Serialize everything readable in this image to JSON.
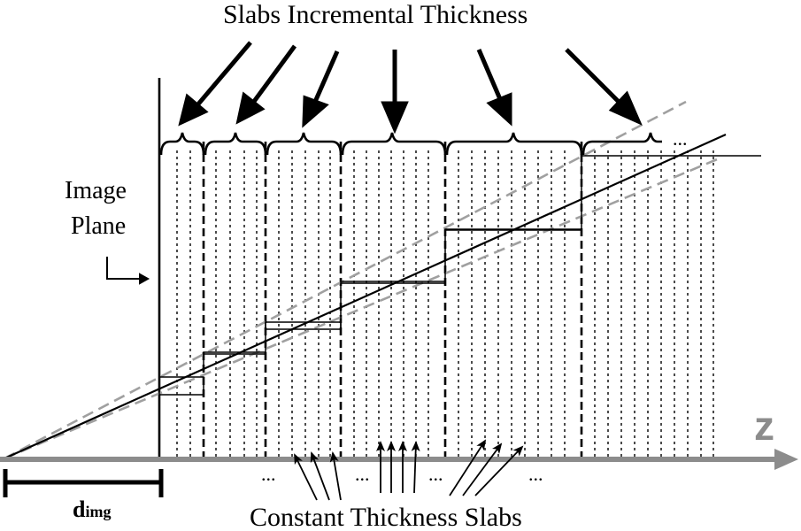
{
  "labels": {
    "top_title": "Slabs Incremental Thickness",
    "image_plane_line1": "Image",
    "image_plane_line2": "Plane",
    "bottom_title": "Constant Thickness Slabs",
    "axis": "z",
    "distance_main": "d",
    "distance_sub": "img",
    "ellipsis": "..."
  },
  "colors": {
    "ink": "#000000",
    "axis_gray": "#8c8c8c",
    "cone_gray": "#a0a0a0"
  },
  "icons": {
    "image_plane_pointer": "corner-arrow-icon",
    "slab_pointers": "arrow-down-icon",
    "constant_pointers": "arrow-up-icon"
  }
}
